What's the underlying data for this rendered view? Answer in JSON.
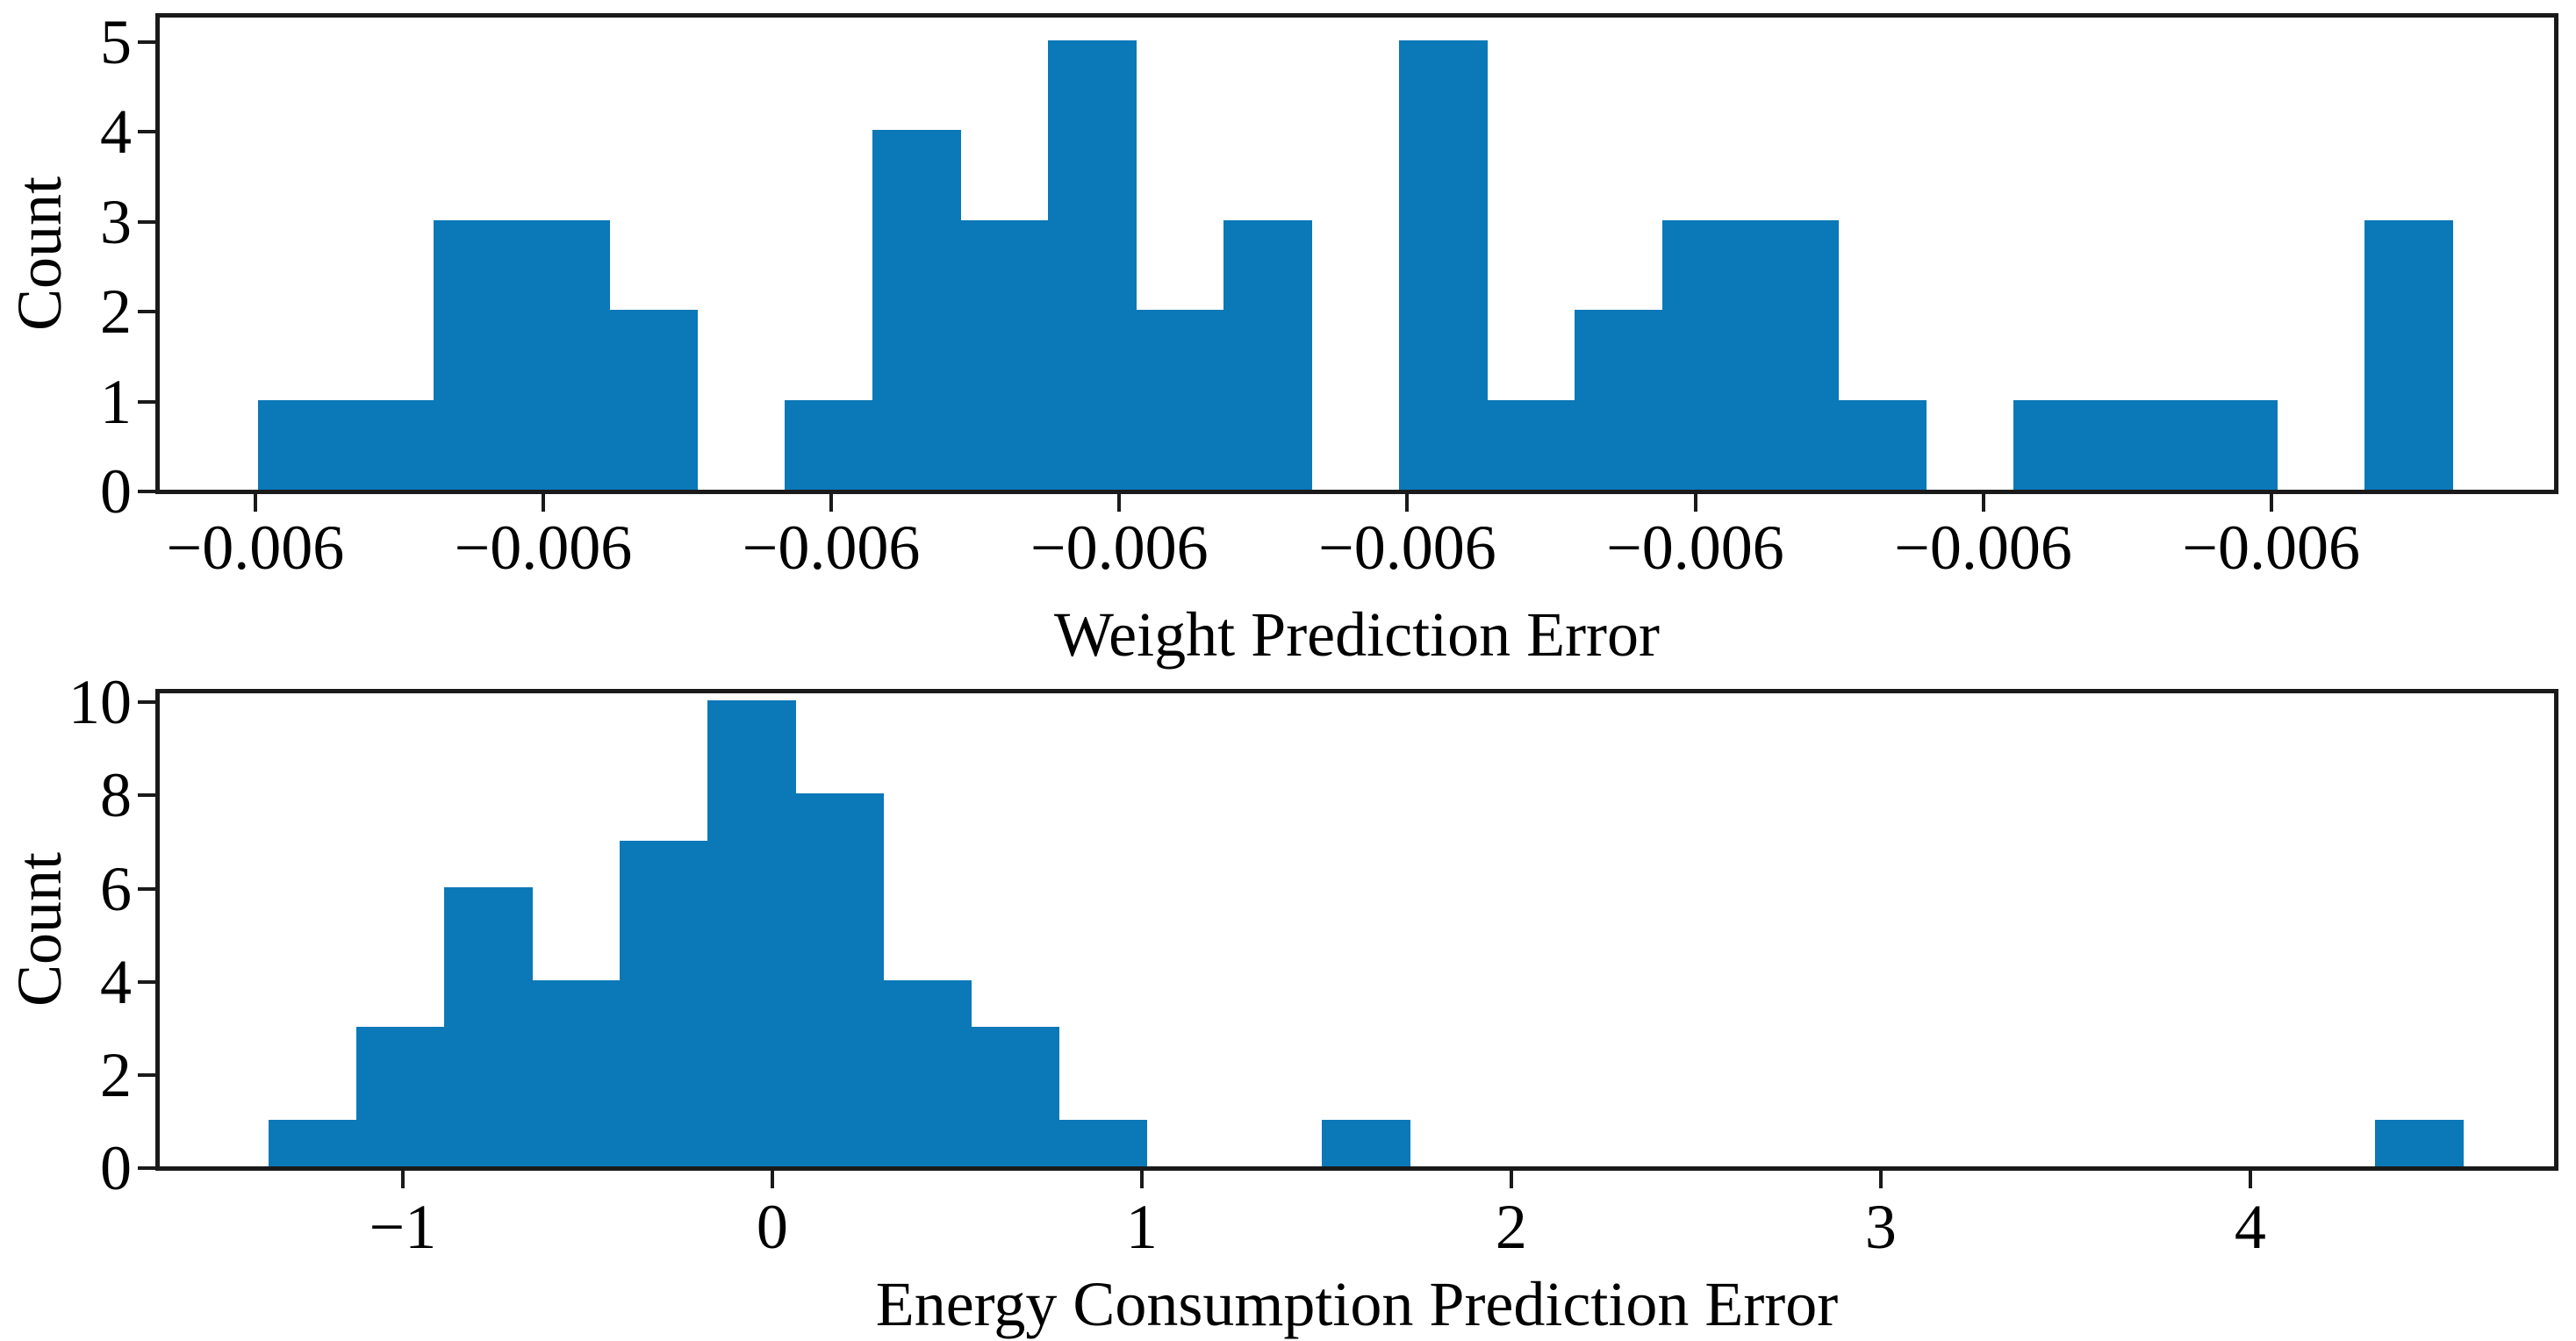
{
  "figure": {
    "description": "Two stacked histograms of model prediction errors",
    "bar_color": "#0b78b8",
    "axis_color": "#1a1a1a",
    "text_color": "#000000",
    "background_color": "#ffffff"
  },
  "chart_data": [
    {
      "type": "bar",
      "subtype": "histogram",
      "title": "",
      "xlabel": "Weight Prediction Error",
      "ylabel": "Count",
      "n_bins": 25,
      "bin_counts": [
        1,
        1,
        3,
        3,
        2,
        0,
        1,
        4,
        3,
        5,
        2,
        3,
        0,
        5,
        1,
        2,
        3,
        3,
        1,
        0,
        1,
        1,
        1,
        0,
        3
      ],
      "total_count": 49,
      "ytick_labels": [
        "0",
        "1",
        "2",
        "3",
        "4",
        "5"
      ],
      "ytick_values": [
        0,
        1,
        2,
        3,
        4,
        5
      ],
      "xtick_labels": [
        "−0.006",
        "−0.006",
        "−0.006",
        "−0.006",
        "−0.006",
        "−0.006",
        "−0.006",
        "−0.006"
      ],
      "ylim": [
        0,
        5.3
      ],
      "grid": "off",
      "legend": "none"
    },
    {
      "type": "bar",
      "subtype": "histogram",
      "title": "",
      "xlabel": "Energy Consumption Prediction Error",
      "ylabel": "Count",
      "n_bins": 25,
      "bin_counts": [
        1,
        3,
        6,
        4,
        7,
        10,
        8,
        4,
        3,
        1,
        0,
        0,
        1,
        0,
        0,
        0,
        0,
        0,
        0,
        0,
        0,
        0,
        0,
        0,
        1
      ],
      "total_count": 49,
      "bin_range_estimate": [
        -1.36,
        4.58
      ],
      "bin_width_estimate": 0.24,
      "ytick_labels": [
        "0",
        "2",
        "4",
        "6",
        "8",
        "10"
      ],
      "ytick_values": [
        0,
        2,
        4,
        6,
        8,
        10
      ],
      "xtick_labels": [
        "−1",
        "0",
        "1",
        "2",
        "3",
        "4"
      ],
      "xtick_values": [
        -1,
        0,
        1,
        2,
        3,
        4
      ],
      "ylim": [
        0,
        10.25
      ],
      "grid": "off",
      "legend": "none"
    }
  ]
}
